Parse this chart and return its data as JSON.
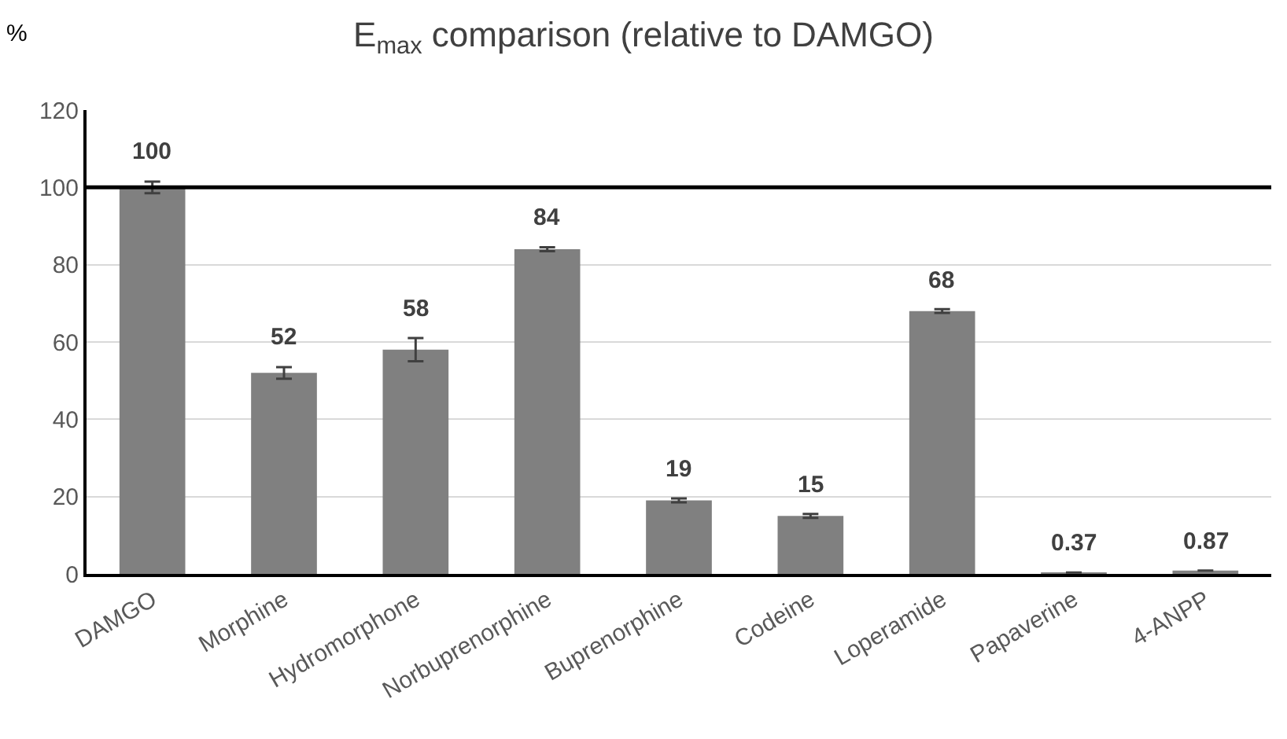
{
  "chart_data": {
    "type": "bar",
    "title": "E$_{max}$ comparison (relative to DAMGO)",
    "ylabel": "%",
    "categories": [
      "DAMGO",
      "Morphine",
      "Hydromorphone",
      "Norbuprenorphine",
      "Buprenorphine",
      "Codeine",
      "Loperamide",
      "Papaverine",
      "4-ANPP"
    ],
    "values": [
      100,
      52,
      58,
      84,
      19,
      15,
      68,
      0.37,
      0.87
    ],
    "errors": [
      1.5,
      1.5,
      3,
      0.5,
      0.5,
      0.5,
      0.5,
      null,
      null
    ],
    "color": "#808080",
    "ylim": [
      0,
      120
    ],
    "yticks": [
      0,
      20,
      40,
      60,
      80,
      100,
      120
    ],
    "ref_lines": [
      {
        "axis": "y",
        "value": 100,
        "color": "#000000"
      }
    ],
    "data_labels": true,
    "grid": "y",
    "legend": false
  }
}
